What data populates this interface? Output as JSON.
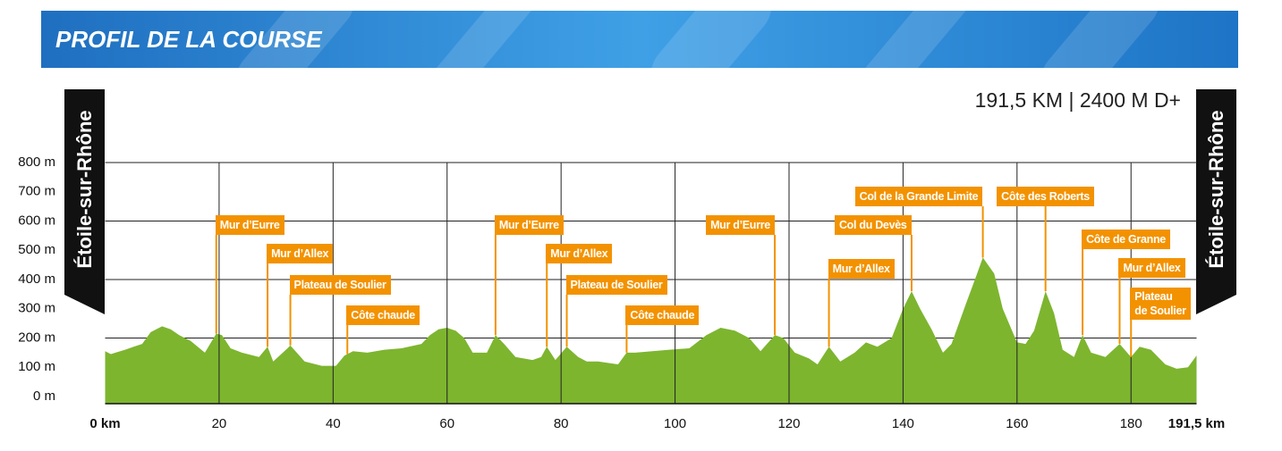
{
  "chart_data": {
    "type": "area",
    "title": "PROFIL DE LA COURSE",
    "subtitle": "191,5 KM | 2400 M D+",
    "start_label": "Étoile-sur-Rhône",
    "finish_label": "Étoile-sur-Rhône",
    "color": "#7db52f",
    "annotation_color": "#f39200",
    "x": [
      0,
      1,
      3.5,
      5,
      6.5,
      8,
      10,
      11.5,
      13,
      15,
      17.5,
      19.5,
      20.5,
      22,
      24,
      27,
      28.5,
      29.5,
      32,
      32.5,
      35,
      38,
      40.5,
      42,
      43.5,
      46,
      49,
      52,
      55.5,
      57,
      58.5,
      60,
      61.5,
      63,
      64.5,
      67,
      68.5,
      70,
      72,
      75,
      76.5,
      77.5,
      79,
      81,
      83,
      84.5,
      86.5,
      90,
      91.5,
      93,
      96,
      99,
      102.5,
      105.5,
      108,
      110.5,
      113,
      115,
      117.5,
      119,
      121,
      123.5,
      125,
      127,
      129,
      131.5,
      133.5,
      135.5,
      138,
      140,
      141.5,
      143,
      145,
      147,
      148.5,
      151,
      153,
      154,
      156,
      157.5,
      160,
      161.5,
      163,
      165,
      166.5,
      168,
      170,
      171.5,
      173,
      175.5,
      178,
      180,
      181.5,
      183.5,
      186,
      188,
      190,
      191.5
    ],
    "values": [
      155,
      145,
      160,
      170,
      180,
      220,
      240,
      230,
      210,
      190,
      150,
      215,
      210,
      165,
      150,
      135,
      170,
      120,
      165,
      175,
      120,
      105,
      105,
      140,
      155,
      150,
      160,
      165,
      180,
      210,
      230,
      235,
      225,
      200,
      150,
      150,
      210,
      180,
      135,
      125,
      135,
      170,
      125,
      170,
      135,
      120,
      120,
      110,
      150,
      150,
      155,
      160,
      165,
      210,
      235,
      225,
      200,
      155,
      210,
      200,
      150,
      130,
      110,
      170,
      120,
      150,
      185,
      170,
      200,
      300,
      360,
      300,
      230,
      150,
      180,
      315,
      420,
      475,
      420,
      300,
      185,
      180,
      225,
      360,
      285,
      160,
      135,
      210,
      150,
      135,
      180,
      135,
      170,
      160,
      110,
      95,
      100,
      140
    ],
    "xlim": [
      0,
      191.5
    ],
    "ylim": [
      0,
      800
    ],
    "xticks": [
      {
        "value": 0,
        "label": "0 km"
      },
      20,
      40,
      60,
      80,
      100,
      120,
      140,
      160,
      180,
      {
        "value": 191.5,
        "label": "191,5 km"
      }
    ],
    "yticks": [
      {
        "value": 0,
        "label": "0 m"
      },
      {
        "value": 100,
        "label": "100 m"
      },
      {
        "value": 200,
        "label": "200 m"
      },
      {
        "value": 300,
        "label": "300 m"
      },
      {
        "value": 400,
        "label": "400 m"
      },
      {
        "value": 500,
        "label": "500 m"
      },
      {
        "value": 600,
        "label": "600 m"
      },
      {
        "value": 700,
        "label": "700 m"
      },
      {
        "value": 800,
        "label": "800 m"
      }
    ],
    "grid": true,
    "annotations": [
      {
        "label": "Mur d’Eurre",
        "km": 19.5
      },
      {
        "label": "Mur d’Allex",
        "km": 28.5
      },
      {
        "label": "Plateau de Soulier",
        "km": 32.5
      },
      {
        "label": "Côte chaude",
        "km": 42.5
      },
      {
        "label": "Mur d’Eurre",
        "km": 68.5
      },
      {
        "label": "Mur d’Allex",
        "km": 77.5
      },
      {
        "label": "Plateau de Soulier",
        "km": 81
      },
      {
        "label": "Côte chaude",
        "km": 91.5
      },
      {
        "label": "Mur d’Eurre",
        "km": 117.5
      },
      {
        "label": "Mur d’Allex",
        "km": 127
      },
      {
        "label": "Col du Devès",
        "km": 141.5
      },
      {
        "label": "Col de la Grande Limite",
        "km": 154
      },
      {
        "label": "Côte des Roberts",
        "km": 165
      },
      {
        "label": "Côte de Granne",
        "km": 171.5
      },
      {
        "label": "Mur d’Allex",
        "km": 178
      },
      {
        "label": "Plateau de Soulier",
        "km": 180
      }
    ]
  }
}
